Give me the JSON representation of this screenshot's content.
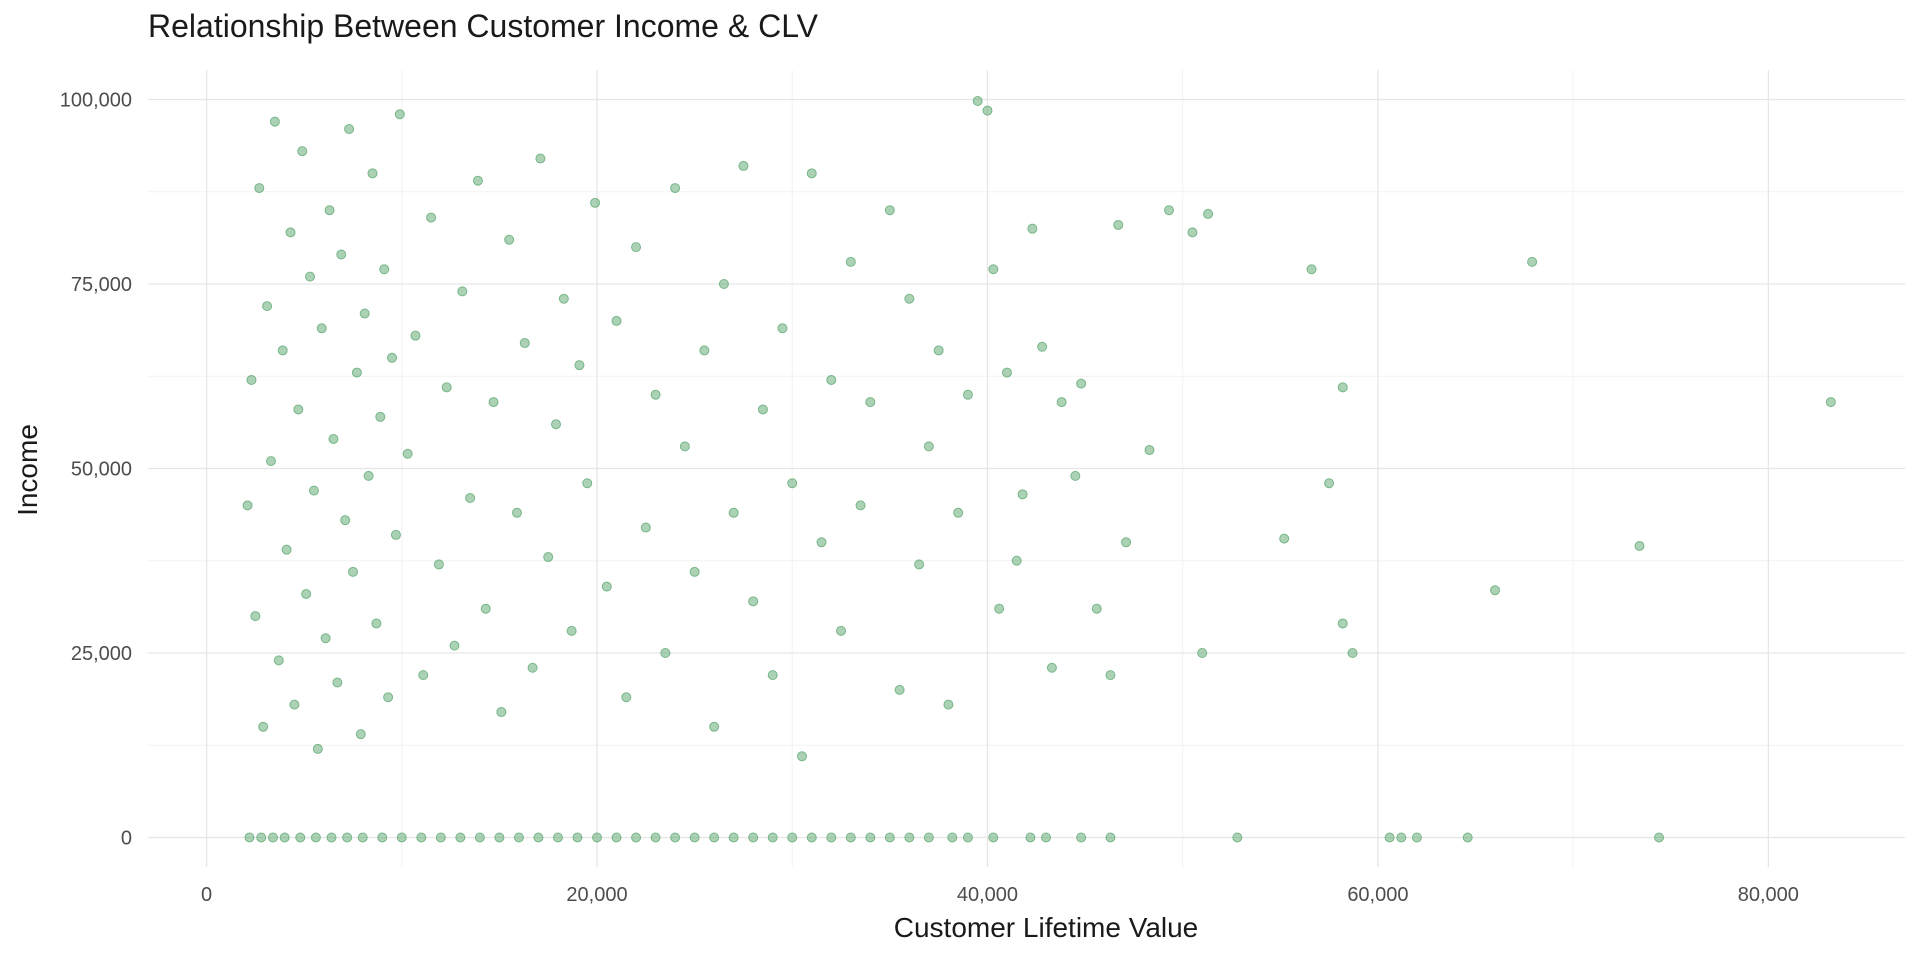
{
  "chart_data": {
    "type": "scatter",
    "title": "Relationship Between Customer Income & CLV",
    "xlabel": "Customer Lifetime Value",
    "ylabel": "Income",
    "xlim": [
      -3000,
      87000
    ],
    "ylim": [
      -4000,
      104000
    ],
    "x_ticks": [
      0,
      20000,
      40000,
      60000,
      80000
    ],
    "x_tick_labels": [
      "0",
      "20,000",
      "40,000",
      "60,000",
      "80,000"
    ],
    "y_ticks": [
      0,
      25000,
      50000,
      75000,
      100000
    ],
    "y_tick_labels": [
      "0",
      "25,000",
      "50,000",
      "75,000",
      "100,000"
    ],
    "grid": true,
    "point_color": "#5aa56e",
    "point_opacity": 0.5,
    "series": [
      {
        "points": [
          [
            2100,
            45000
          ],
          [
            2300,
            62000
          ],
          [
            2500,
            30000
          ],
          [
            2700,
            88000
          ],
          [
            2900,
            15000
          ],
          [
            3100,
            72000
          ],
          [
            3300,
            51000
          ],
          [
            3500,
            97000
          ],
          [
            3700,
            24000
          ],
          [
            3900,
            66000
          ],
          [
            4100,
            39000
          ],
          [
            4300,
            82000
          ],
          [
            4500,
            18000
          ],
          [
            4700,
            58000
          ],
          [
            4900,
            93000
          ],
          [
            5100,
            33000
          ],
          [
            5300,
            76000
          ],
          [
            5500,
            47000
          ],
          [
            5700,
            12000
          ],
          [
            5900,
            69000
          ],
          [
            6100,
            27000
          ],
          [
            6300,
            85000
          ],
          [
            6500,
            54000
          ],
          [
            6700,
            21000
          ],
          [
            6900,
            79000
          ],
          [
            7100,
            43000
          ],
          [
            7300,
            96000
          ],
          [
            7500,
            36000
          ],
          [
            7700,
            63000
          ],
          [
            7900,
            14000
          ],
          [
            8100,
            71000
          ],
          [
            8300,
            49000
          ],
          [
            8500,
            90000
          ],
          [
            8700,
            29000
          ],
          [
            8900,
            57000
          ],
          [
            9100,
            77000
          ],
          [
            9300,
            19000
          ],
          [
            9500,
            65000
          ],
          [
            9700,
            41000
          ],
          [
            9900,
            98000
          ],
          [
            10300,
            52000
          ],
          [
            10700,
            68000
          ],
          [
            11100,
            22000
          ],
          [
            11500,
            84000
          ],
          [
            11900,
            37000
          ],
          [
            12300,
            61000
          ],
          [
            12700,
            26000
          ],
          [
            13100,
            74000
          ],
          [
            13500,
            46000
          ],
          [
            13900,
            89000
          ],
          [
            14300,
            31000
          ],
          [
            14700,
            59000
          ],
          [
            15100,
            17000
          ],
          [
            15500,
            81000
          ],
          [
            15900,
            44000
          ],
          [
            16300,
            67000
          ],
          [
            16700,
            23000
          ],
          [
            17100,
            92000
          ],
          [
            17500,
            38000
          ],
          [
            17900,
            56000
          ],
          [
            18300,
            73000
          ],
          [
            18700,
            28000
          ],
          [
            19100,
            64000
          ],
          [
            19500,
            48000
          ],
          [
            19900,
            86000
          ],
          [
            20500,
            34000
          ],
          [
            21000,
            70000
          ],
          [
            21500,
            19000
          ],
          [
            22000,
            80000
          ],
          [
            22500,
            42000
          ],
          [
            23000,
            60000
          ],
          [
            23500,
            25000
          ],
          [
            24000,
            88000
          ],
          [
            24500,
            53000
          ],
          [
            25000,
            36000
          ],
          [
            25500,
            66000
          ],
          [
            26000,
            15000
          ],
          [
            26500,
            75000
          ],
          [
            27000,
            44000
          ],
          [
            27500,
            91000
          ],
          [
            28000,
            32000
          ],
          [
            28500,
            58000
          ],
          [
            29000,
            22000
          ],
          [
            29500,
            69000
          ],
          [
            30000,
            48000
          ],
          [
            30500,
            11000
          ],
          [
            31000,
            90000
          ],
          [
            31500,
            40000
          ],
          [
            32000,
            62000
          ],
          [
            32500,
            28000
          ],
          [
            33000,
            78000
          ],
          [
            33500,
            45000
          ],
          [
            34000,
            59000
          ],
          [
            35000,
            85000
          ],
          [
            35500,
            20000
          ],
          [
            36000,
            73000
          ],
          [
            36500,
            37000
          ],
          [
            37000,
            53000
          ],
          [
            37500,
            66000
          ],
          [
            38000,
            18000
          ],
          [
            38500,
            44000
          ],
          [
            39000,
            60000
          ],
          [
            39500,
            99800
          ],
          [
            40000,
            98500
          ],
          [
            40300,
            77000
          ],
          [
            40600,
            31000
          ],
          [
            41000,
            63000
          ],
          [
            41500,
            37500
          ],
          [
            41800,
            46500
          ],
          [
            42300,
            82500
          ],
          [
            42800,
            66500
          ],
          [
            43300,
            23000
          ],
          [
            43800,
            59000
          ],
          [
            44500,
            49000
          ],
          [
            44800,
            61500
          ],
          [
            45600,
            31000
          ],
          [
            46300,
            22000
          ],
          [
            46700,
            83000
          ],
          [
            47100,
            40000
          ],
          [
            48300,
            52500
          ],
          [
            49300,
            85000
          ],
          [
            50500,
            82000
          ],
          [
            51000,
            25000
          ],
          [
            51300,
            84500
          ],
          [
            55200,
            40500
          ],
          [
            56600,
            77000
          ],
          [
            57500,
            48000
          ],
          [
            58200,
            29000
          ],
          [
            58200,
            61000
          ],
          [
            58700,
            25000
          ],
          [
            66000,
            33500
          ],
          [
            67900,
            78000
          ],
          [
            73400,
            39500
          ],
          [
            83200,
            59000
          ],
          [
            2200,
            0
          ],
          [
            2800,
            0
          ],
          [
            3400,
            0
          ],
          [
            4000,
            0
          ],
          [
            4800,
            0
          ],
          [
            5600,
            0
          ],
          [
            6400,
            0
          ],
          [
            7200,
            0
          ],
          [
            8000,
            0
          ],
          [
            9000,
            0
          ],
          [
            10000,
            0
          ],
          [
            11000,
            0
          ],
          [
            12000,
            0
          ],
          [
            13000,
            0
          ],
          [
            14000,
            0
          ],
          [
            15000,
            0
          ],
          [
            16000,
            0
          ],
          [
            17000,
            0
          ],
          [
            18000,
            0
          ],
          [
            19000,
            0
          ],
          [
            20000,
            0
          ],
          [
            21000,
            0
          ],
          [
            22000,
            0
          ],
          [
            23000,
            0
          ],
          [
            24000,
            0
          ],
          [
            25000,
            0
          ],
          [
            26000,
            0
          ],
          [
            27000,
            0
          ],
          [
            28000,
            0
          ],
          [
            29000,
            0
          ],
          [
            30000,
            0
          ],
          [
            31000,
            0
          ],
          [
            32000,
            0
          ],
          [
            33000,
            0
          ],
          [
            34000,
            0
          ],
          [
            35000,
            0
          ],
          [
            36000,
            0
          ],
          [
            37000,
            0
          ],
          [
            38200,
            0
          ],
          [
            39000,
            0
          ],
          [
            40300,
            0
          ],
          [
            42200,
            0
          ],
          [
            43000,
            0
          ],
          [
            44800,
            0
          ],
          [
            46300,
            0
          ],
          [
            52800,
            0
          ],
          [
            60600,
            0
          ],
          [
            61200,
            0
          ],
          [
            62000,
            0
          ],
          [
            64600,
            0
          ],
          [
            74400,
            0
          ]
        ]
      }
    ]
  }
}
